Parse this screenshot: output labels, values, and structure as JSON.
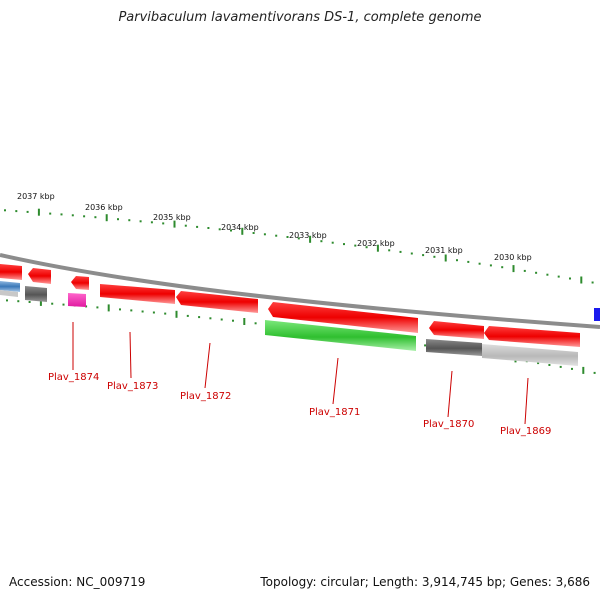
{
  "title": "Parvibaculum lavamentivorans DS-1, complete genome",
  "accession": "Accession: NC_009719",
  "summary": "Topology: circular; Length: 3,914,745 bp; Genes: 3,686",
  "colors": {
    "backbone": "#8c8c8c",
    "tick": "#2e8b2e",
    "gene_label": "#cc0000",
    "label_line": "#cc0000"
  },
  "scale_labels": [
    "2037 kbp",
    "2036 kbp",
    "2035 kbp",
    "2034 kbp",
    "2033 kbp",
    "2032 kbp",
    "2031 kbp",
    "2030 kbp"
  ],
  "gene_labels": [
    "Plav_1874",
    "Plav_1873",
    "Plav_1872",
    "Plav_1871",
    "Plav_1870",
    "Plav_1869"
  ]
}
